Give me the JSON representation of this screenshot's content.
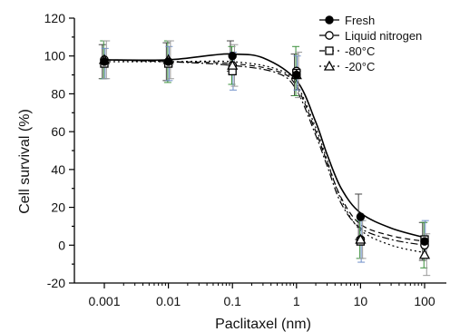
{
  "chart_data": {
    "type": "scatter",
    "xlabel": "Paclitaxel (nm)",
    "ylabel": "Cell survival (%)",
    "x_scale": "log",
    "xlim": [
      0.001,
      100
    ],
    "ylim": [
      -20,
      120
    ],
    "x_ticks": [
      "0.001",
      "0.01",
      "0.1",
      "1",
      "10",
      "100"
    ],
    "y_ticks": [
      "-20",
      "0",
      "20",
      "40",
      "60",
      "80",
      "100",
      "120"
    ],
    "grid": false,
    "legend_position": "top-right",
    "series": [
      {
        "name": "Fresh",
        "marker": "filled-circle",
        "line_style": "solid",
        "color": "#000000",
        "x": [
          0.001,
          0.01,
          0.1,
          1,
          10,
          100
        ],
        "y": [
          97,
          97,
          100,
          90,
          15,
          2
        ],
        "error": [
          9,
          10,
          8,
          11,
          12,
          10
        ],
        "fit": [
          [
            0.001,
            98
          ],
          [
            0.01,
            98
          ],
          [
            0.05,
            100.5
          ],
          [
            0.1,
            101
          ],
          [
            0.3,
            99
          ],
          [
            1,
            87
          ],
          [
            2,
            65
          ],
          [
            3,
            48
          ],
          [
            5,
            30
          ],
          [
            10,
            17
          ],
          [
            30,
            9
          ],
          [
            100,
            4
          ]
        ]
      },
      {
        "name": "Liquid nitrogen",
        "marker": "open-circle",
        "line_style": "dashdot",
        "color": "#000000",
        "x": [
          0.001,
          0.01,
          0.1,
          1,
          10,
          100
        ],
        "y": [
          98,
          97,
          95,
          92,
          3,
          0
        ],
        "error": [
          10,
          11,
          10,
          13,
          10,
          12
        ],
        "fit": [
          [
            0.001,
            98
          ],
          [
            0.01,
            97
          ],
          [
            0.1,
            95
          ],
          [
            0.5,
            91
          ],
          [
            1,
            82
          ],
          [
            2,
            58
          ],
          [
            3,
            42
          ],
          [
            5,
            22
          ],
          [
            10,
            9
          ],
          [
            30,
            3
          ],
          [
            100,
            0
          ]
        ]
      },
      {
        "name": "-80°C",
        "marker": "open-square",
        "line_style": "dashed",
        "color": "#000000",
        "x": [
          0.001,
          0.01,
          0.1,
          1,
          10,
          100
        ],
        "y": [
          96,
          96,
          92,
          91,
          2,
          3
        ],
        "error": [
          8,
          9,
          10,
          9,
          11,
          10
        ],
        "fit": [
          [
            0.001,
            98
          ],
          [
            0.01,
            97
          ],
          [
            0.1,
            96
          ],
          [
            0.5,
            92
          ],
          [
            1,
            84
          ],
          [
            2,
            60
          ],
          [
            3,
            44
          ],
          [
            5,
            25
          ],
          [
            10,
            11
          ],
          [
            30,
            5
          ],
          [
            100,
            2
          ]
        ]
      },
      {
        "name": "-20°C",
        "marker": "open-triangle",
        "line_style": "dotted",
        "color": "#000000",
        "x": [
          0.001,
          0.01,
          0.1,
          1,
          10,
          100
        ],
        "y": [
          98,
          98,
          95,
          90,
          3,
          -5
        ],
        "error": [
          10,
          10,
          11,
          12,
          10,
          11
        ],
        "fit": [
          [
            0.001,
            97
          ],
          [
            0.01,
            97
          ],
          [
            0.1,
            97
          ],
          [
            0.5,
            93
          ],
          [
            1,
            85
          ],
          [
            2,
            62
          ],
          [
            3,
            45
          ],
          [
            5,
            24
          ],
          [
            10,
            8
          ],
          [
            30,
            0
          ],
          [
            100,
            -4
          ]
        ]
      }
    ],
    "error_bar_colors": [
      "#3a8f3a",
      "#6f8fc9",
      "#999999"
    ]
  }
}
